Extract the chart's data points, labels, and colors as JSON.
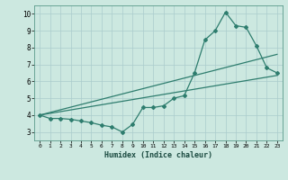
{
  "title": "",
  "xlabel": "Humidex (Indice chaleur)",
  "bg_color": "#cce8e0",
  "line_color": "#2e7d6e",
  "grid_color": "#aacccc",
  "xlim": [
    -0.5,
    23.5
  ],
  "ylim": [
    2.5,
    10.5
  ],
  "xticks": [
    0,
    1,
    2,
    3,
    4,
    5,
    6,
    7,
    8,
    9,
    10,
    11,
    12,
    13,
    14,
    15,
    16,
    17,
    18,
    19,
    20,
    21,
    22,
    23
  ],
  "yticks": [
    3,
    4,
    5,
    6,
    7,
    8,
    9,
    10
  ],
  "curve1_x": [
    0,
    1,
    2,
    3,
    4,
    5,
    6,
    7,
    8,
    9,
    10,
    11,
    12,
    13,
    14,
    15,
    16,
    17,
    18,
    19,
    20,
    21,
    22,
    23
  ],
  "curve1_y": [
    4.0,
    3.8,
    3.8,
    3.75,
    3.65,
    3.55,
    3.4,
    3.3,
    3.0,
    3.45,
    4.45,
    4.45,
    4.55,
    5.0,
    5.15,
    6.5,
    8.45,
    9.0,
    10.1,
    9.3,
    9.2,
    8.1,
    6.8,
    6.5
  ],
  "line2_x": [
    0,
    23
  ],
  "line2_y": [
    4.0,
    6.35
  ],
  "line3_x": [
    0,
    23
  ],
  "line3_y": [
    4.0,
    7.6
  ]
}
